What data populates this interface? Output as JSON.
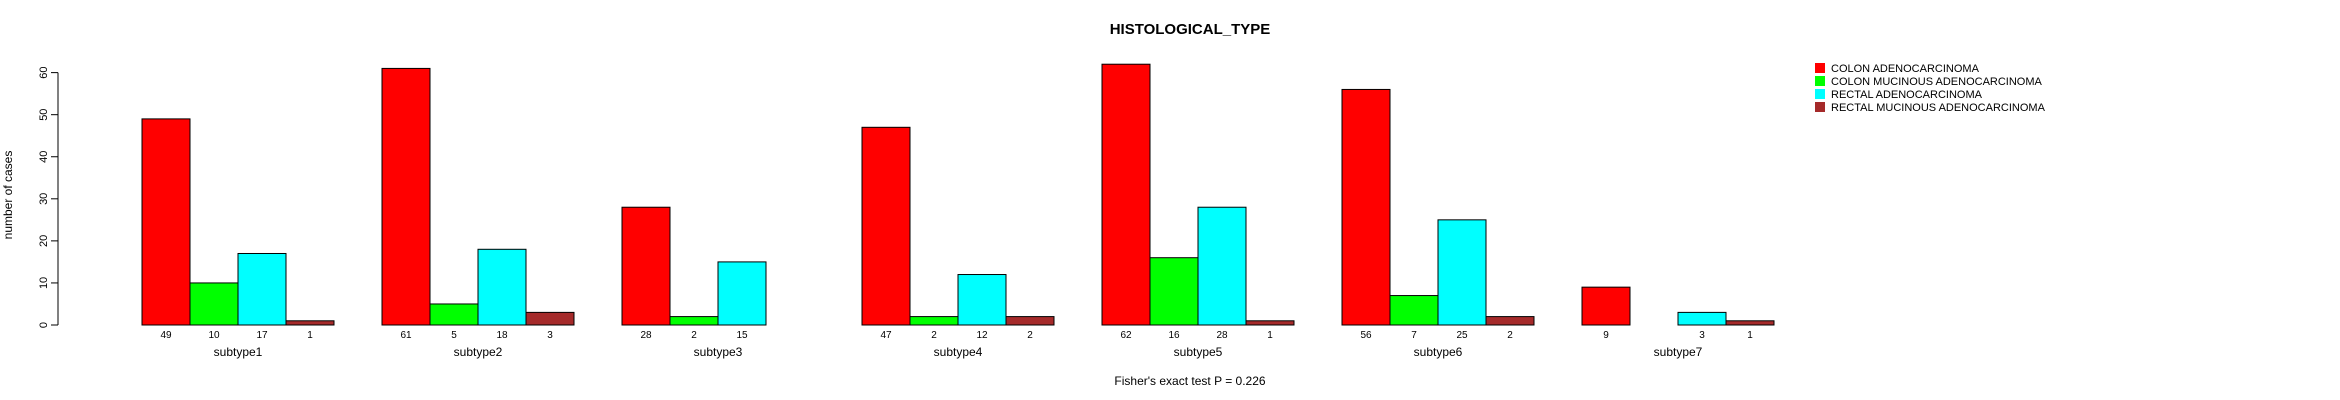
{
  "chart_data": {
    "type": "bar",
    "title": "HISTOLOGICAL_TYPE",
    "ylabel": "number of cases",
    "xlabel": "",
    "ylim": [
      0,
      63
    ],
    "yticks": [
      0,
      10,
      20,
      30,
      40,
      50,
      60
    ],
    "categories": [
      "subtype1",
      "subtype2",
      "subtype3",
      "subtype4",
      "subtype5",
      "subtype6",
      "subtype7"
    ],
    "series": [
      {
        "name": "COLON ADENOCARCINOMA",
        "color": "#ff0000",
        "values": [
          49,
          61,
          28,
          47,
          62,
          56,
          9
        ]
      },
      {
        "name": "COLON MUCINOUS ADENOCARCINOMA",
        "color": "#00ff00",
        "values": [
          10,
          5,
          2,
          2,
          16,
          7,
          0
        ]
      },
      {
        "name": "RECTAL ADENOCARCINOMA",
        "color": "#00ffff",
        "values": [
          17,
          18,
          15,
          12,
          28,
          25,
          3
        ]
      },
      {
        "name": "RECTAL MUCINOUS ADENOCARCINOMA",
        "color": "#a52a2a",
        "values": [
          1,
          3,
          0,
          2,
          1,
          2,
          1
        ]
      }
    ],
    "count_labels": [
      [
        "49",
        "10",
        "17",
        "1"
      ],
      [
        "61",
        "5",
        "18",
        "3"
      ],
      [
        "28",
        "2",
        "15",
        ""
      ],
      [
        "47",
        "2",
        "12",
        "2"
      ],
      [
        "62",
        "16",
        "28",
        "1"
      ],
      [
        "56",
        "7",
        "25",
        "2"
      ],
      [
        "9",
        "",
        "3",
        "1"
      ]
    ],
    "footnote": "Fisher's exact test P = 0.226",
    "legend_position": "top-right",
    "grid": false
  }
}
